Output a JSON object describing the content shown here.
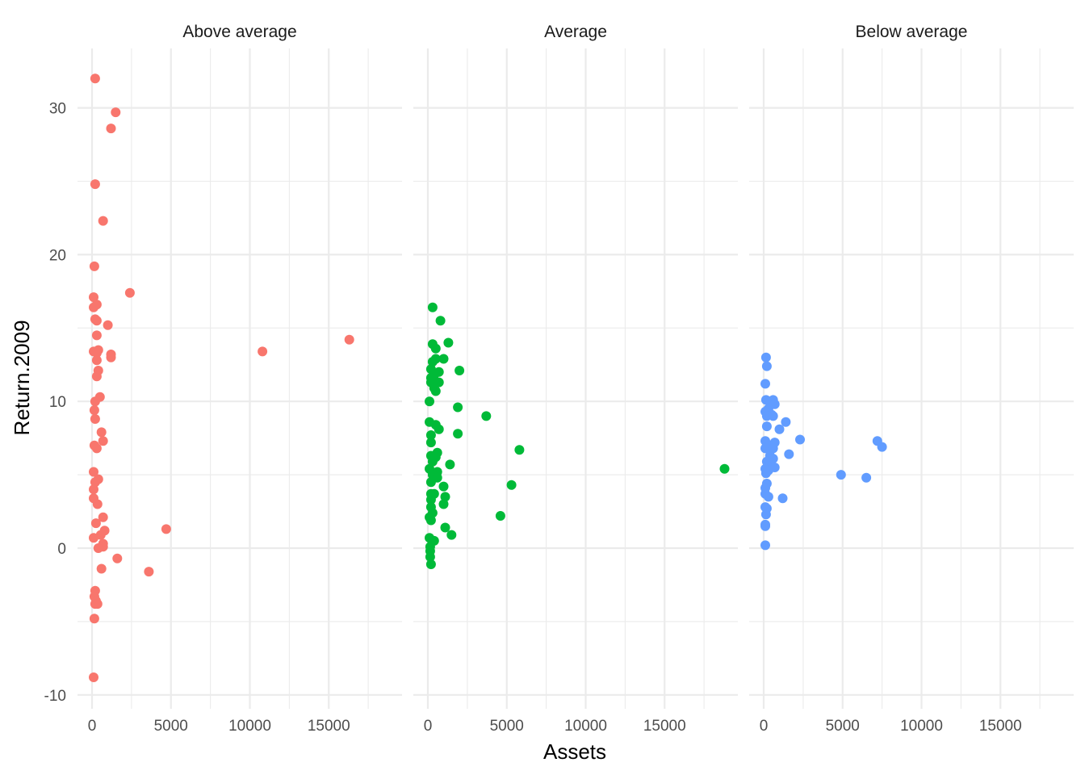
{
  "chart_data": {
    "type": "scatter",
    "facet_by": "panel",
    "xlabel": "Assets",
    "ylabel": "Return.2009",
    "xlim": [
      0,
      18500
    ],
    "ylim": [
      -10,
      32
    ],
    "x_ticks": [
      0,
      5000,
      10000,
      15000
    ],
    "y_ticks": [
      -10,
      0,
      10,
      20,
      30
    ],
    "grid": true,
    "legend": "none",
    "panels": [
      {
        "name": "Above average",
        "color": "#F8766D",
        "points": [
          {
            "x": 200,
            "y": 32.0
          },
          {
            "x": 1500,
            "y": 29.7
          },
          {
            "x": 1200,
            "y": 28.6
          },
          {
            "x": 200,
            "y": 24.8
          },
          {
            "x": 700,
            "y": 22.3
          },
          {
            "x": 150,
            "y": 19.2
          },
          {
            "x": 2400,
            "y": 17.4
          },
          {
            "x": 100,
            "y": 17.1
          },
          {
            "x": 300,
            "y": 16.6
          },
          {
            "x": 100,
            "y": 16.4
          },
          {
            "x": 200,
            "y": 15.6
          },
          {
            "x": 300,
            "y": 15.5
          },
          {
            "x": 1000,
            "y": 15.2
          },
          {
            "x": 300,
            "y": 14.5
          },
          {
            "x": 16300,
            "y": 14.2
          },
          {
            "x": 10800,
            "y": 13.4
          },
          {
            "x": 100,
            "y": 13.4
          },
          {
            "x": 400,
            "y": 13.5
          },
          {
            "x": 300,
            "y": 13.3
          },
          {
            "x": 1200,
            "y": 13.2
          },
          {
            "x": 1200,
            "y": 13.0
          },
          {
            "x": 300,
            "y": 12.8
          },
          {
            "x": 400,
            "y": 12.1
          },
          {
            "x": 300,
            "y": 11.7
          },
          {
            "x": 500,
            "y": 10.3
          },
          {
            "x": 200,
            "y": 10.0
          },
          {
            "x": 150,
            "y": 9.4
          },
          {
            "x": 200,
            "y": 8.8
          },
          {
            "x": 600,
            "y": 7.9
          },
          {
            "x": 700,
            "y": 7.3
          },
          {
            "x": 150,
            "y": 7.0
          },
          {
            "x": 300,
            "y": 6.8
          },
          {
            "x": 100,
            "y": 5.2
          },
          {
            "x": 400,
            "y": 4.7
          },
          {
            "x": 200,
            "y": 4.5
          },
          {
            "x": 100,
            "y": 4.0
          },
          {
            "x": 100,
            "y": 3.4
          },
          {
            "x": 350,
            "y": 3.0
          },
          {
            "x": 700,
            "y": 2.1
          },
          {
            "x": 250,
            "y": 1.7
          },
          {
            "x": 4700,
            "y": 1.3
          },
          {
            "x": 800,
            "y": 1.2
          },
          {
            "x": 550,
            "y": 0.9
          },
          {
            "x": 100,
            "y": 0.7
          },
          {
            "x": 700,
            "y": 0.3
          },
          {
            "x": 700,
            "y": 0.1
          },
          {
            "x": 400,
            "y": 0.0
          },
          {
            "x": 1600,
            "y": -0.7
          },
          {
            "x": 600,
            "y": -1.4
          },
          {
            "x": 3600,
            "y": -1.6
          },
          {
            "x": 200,
            "y": -2.9
          },
          {
            "x": 150,
            "y": -3.3
          },
          {
            "x": 250,
            "y": -3.6
          },
          {
            "x": 200,
            "y": -3.8
          },
          {
            "x": 350,
            "y": -3.8
          },
          {
            "x": 150,
            "y": -4.8
          },
          {
            "x": 100,
            "y": -8.8
          }
        ]
      },
      {
        "name": "Average",
        "color": "#00BA38",
        "points": [
          {
            "x": 300,
            "y": 16.4
          },
          {
            "x": 800,
            "y": 15.5
          },
          {
            "x": 1300,
            "y": 14.0
          },
          {
            "x": 300,
            "y": 13.9
          },
          {
            "x": 500,
            "y": 13.6
          },
          {
            "x": 1000,
            "y": 12.9
          },
          {
            "x": 500,
            "y": 12.9
          },
          {
            "x": 300,
            "y": 12.7
          },
          {
            "x": 200,
            "y": 12.2
          },
          {
            "x": 2000,
            "y": 12.1
          },
          {
            "x": 700,
            "y": 12.0
          },
          {
            "x": 400,
            "y": 11.8
          },
          {
            "x": 200,
            "y": 11.6
          },
          {
            "x": 200,
            "y": 11.3
          },
          {
            "x": 700,
            "y": 11.3
          },
          {
            "x": 400,
            "y": 10.9
          },
          {
            "x": 500,
            "y": 10.7
          },
          {
            "x": 100,
            "y": 10.0
          },
          {
            "x": 1900,
            "y": 9.6
          },
          {
            "x": 3700,
            "y": 9.0
          },
          {
            "x": 100,
            "y": 8.6
          },
          {
            "x": 500,
            "y": 8.4
          },
          {
            "x": 700,
            "y": 8.1
          },
          {
            "x": 1900,
            "y": 7.8
          },
          {
            "x": 200,
            "y": 7.7
          },
          {
            "x": 200,
            "y": 7.2
          },
          {
            "x": 5800,
            "y": 6.7
          },
          {
            "x": 600,
            "y": 6.5
          },
          {
            "x": 200,
            "y": 6.3
          },
          {
            "x": 500,
            "y": 6.2
          },
          {
            "x": 300,
            "y": 5.9
          },
          {
            "x": 1400,
            "y": 5.7
          },
          {
            "x": 100,
            "y": 5.4
          },
          {
            "x": 18800,
            "y": 5.4
          },
          {
            "x": 600,
            "y": 5.2
          },
          {
            "x": 300,
            "y": 5.0
          },
          {
            "x": 600,
            "y": 4.8
          },
          {
            "x": 200,
            "y": 4.5
          },
          {
            "x": 5300,
            "y": 4.3
          },
          {
            "x": 1000,
            "y": 4.2
          },
          {
            "x": 400,
            "y": 3.7
          },
          {
            "x": 200,
            "y": 3.7
          },
          {
            "x": 1100,
            "y": 3.5
          },
          {
            "x": 200,
            "y": 3.3
          },
          {
            "x": 1000,
            "y": 3.0
          },
          {
            "x": 200,
            "y": 2.8
          },
          {
            "x": 300,
            "y": 2.4
          },
          {
            "x": 4600,
            "y": 2.2
          },
          {
            "x": 100,
            "y": 2.1
          },
          {
            "x": 200,
            "y": 1.9
          },
          {
            "x": 1100,
            "y": 1.4
          },
          {
            "x": 1500,
            "y": 0.9
          },
          {
            "x": 100,
            "y": 0.7
          },
          {
            "x": 400,
            "y": 0.5
          },
          {
            "x": 150,
            "y": 0.1
          },
          {
            "x": 150,
            "y": -0.2
          },
          {
            "x": 150,
            "y": -0.6
          },
          {
            "x": 200,
            "y": -1.1
          }
        ]
      },
      {
        "name": "Below average",
        "color": "#619CFF",
        "points": [
          {
            "x": 150,
            "y": 13.0
          },
          {
            "x": 200,
            "y": 12.4
          },
          {
            "x": 100,
            "y": 11.2
          },
          {
            "x": 150,
            "y": 10.1
          },
          {
            "x": 600,
            "y": 10.1
          },
          {
            "x": 400,
            "y": 10.0
          },
          {
            "x": 700,
            "y": 9.8
          },
          {
            "x": 300,
            "y": 9.5
          },
          {
            "x": 100,
            "y": 9.3
          },
          {
            "x": 500,
            "y": 9.1
          },
          {
            "x": 200,
            "y": 9.0
          },
          {
            "x": 600,
            "y": 9.0
          },
          {
            "x": 1400,
            "y": 8.6
          },
          {
            "x": 200,
            "y": 8.3
          },
          {
            "x": 1000,
            "y": 8.1
          },
          {
            "x": 2300,
            "y": 7.4
          },
          {
            "x": 100,
            "y": 7.3
          },
          {
            "x": 7200,
            "y": 7.3
          },
          {
            "x": 700,
            "y": 7.2
          },
          {
            "x": 400,
            "y": 7.0
          },
          {
            "x": 7500,
            "y": 6.9
          },
          {
            "x": 100,
            "y": 6.8
          },
          {
            "x": 600,
            "y": 6.8
          },
          {
            "x": 1600,
            "y": 6.4
          },
          {
            "x": 400,
            "y": 6.3
          },
          {
            "x": 600,
            "y": 6.1
          },
          {
            "x": 200,
            "y": 5.9
          },
          {
            "x": 400,
            "y": 5.8
          },
          {
            "x": 700,
            "y": 5.5
          },
          {
            "x": 100,
            "y": 5.4
          },
          {
            "x": 300,
            "y": 5.3
          },
          {
            "x": 150,
            "y": 5.1
          },
          {
            "x": 4900,
            "y": 5.0
          },
          {
            "x": 6500,
            "y": 4.8
          },
          {
            "x": 200,
            "y": 4.4
          },
          {
            "x": 100,
            "y": 4.1
          },
          {
            "x": 100,
            "y": 3.7
          },
          {
            "x": 300,
            "y": 3.5
          },
          {
            "x": 1200,
            "y": 3.4
          },
          {
            "x": 100,
            "y": 2.8
          },
          {
            "x": 200,
            "y": 2.7
          },
          {
            "x": 150,
            "y": 2.3
          },
          {
            "x": 100,
            "y": 1.6
          },
          {
            "x": 100,
            "y": 1.5
          },
          {
            "x": 100,
            "y": 0.2
          }
        ]
      }
    ]
  }
}
